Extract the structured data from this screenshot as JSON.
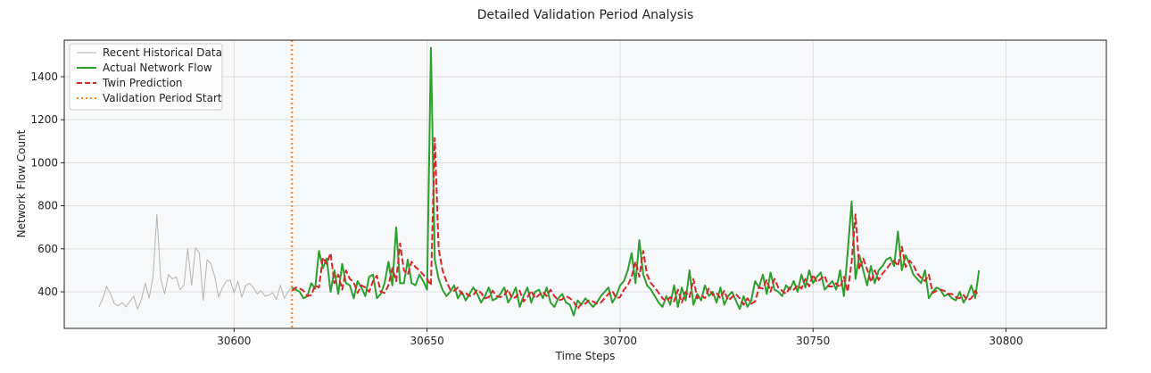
{
  "chart_data": {
    "type": "line",
    "title": "Detailed Validation Period Analysis",
    "xlabel": "Time Steps",
    "ylabel": "Network Flow Count",
    "xlim": [
      30556,
      30826
    ],
    "ylim": [
      230,
      1570
    ],
    "xticks": [
      30600,
      30650,
      30700,
      30750,
      30800
    ],
    "yticks": [
      400,
      600,
      800,
      1000,
      1200,
      1400
    ],
    "grid": true,
    "legend_position": "top-left",
    "validation_start": 30615,
    "colors": {
      "historical": "#b3b3b3",
      "actual": "#2ca02c",
      "prediction": "#d62728",
      "validation": "#ff7f0e",
      "plot_bg": "#f7f8fa"
    },
    "series": [
      {
        "name": "Recent Historical Data",
        "x_start": 30565,
        "values": [
          330,
          370,
          425,
          390,
          345,
          335,
          350,
          330,
          355,
          380,
          320,
          365,
          440,
          370,
          470,
          760,
          460,
          390,
          480,
          460,
          470,
          410,
          430,
          600,
          430,
          605,
          580,
          360,
          550,
          530,
          470,
          375,
          420,
          450,
          455,
          395,
          450,
          375,
          430,
          440,
          420,
          390,
          405,
          380,
          385,
          395,
          365,
          430,
          370,
          400,
          420,
          395
        ]
      },
      {
        "name": "Actual Network Flow",
        "x_start": 30615,
        "values": [
          420,
          410,
          400,
          370,
          380,
          440,
          415,
          590,
          510,
          555,
          400,
          500,
          390,
          530,
          440,
          430,
          370,
          450,
          420,
          380,
          470,
          480,
          370,
          390,
          440,
          540,
          430,
          700,
          440,
          440,
          550,
          440,
          430,
          480,
          450,
          410,
          1535,
          550,
          460,
          410,
          380,
          400,
          430,
          370,
          400,
          360,
          390,
          420,
          390,
          350,
          380,
          420,
          360,
          370,
          390,
          420,
          350,
          380,
          420,
          330,
          380,
          420,
          350,
          400,
          410,
          370,
          420,
          350,
          330,
          370,
          390,
          350,
          340,
          290,
          360,
          340,
          370,
          350,
          330,
          350,
          380,
          400,
          420,
          350,
          380,
          430,
          450,
          500,
          580,
          440,
          640,
          480,
          430,
          410,
          380,
          350,
          330,
          380,
          340,
          430,
          330,
          420,
          360,
          500,
          340,
          390,
          360,
          430,
          380,
          400,
          350,
          420,
          340,
          380,
          400,
          360,
          320,
          380,
          330,
          360,
          450,
          420,
          480,
          390,
          490,
          410,
          400,
          380,
          430,
          410,
          450,
          400,
          480,
          420,
          500,
          440,
          470,
          490,
          410,
          430,
          450,
          410,
          500,
          380,
          590,
          820,
          460,
          570,
          500,
          430,
          520,
          440,
          500,
          520,
          550,
          560,
          520,
          680,
          500,
          570,
          530,
          480,
          460,
          440,
          500,
          370,
          400,
          420,
          410,
          380,
          390,
          370,
          360,
          400,
          350,
          380,
          430,
          370,
          500
        ]
      },
      {
        "name": "Twin Prediction",
        "x_start": 30615,
        "values": [
          405,
          420,
          415,
          405,
          380,
          385,
          430,
          420,
          560,
          530,
          580,
          440,
          480,
          410,
          500,
          460,
          445,
          395,
          430,
          420,
          400,
          450,
          475,
          400,
          395,
          430,
          510,
          450,
          625,
          500,
          480,
          540,
          515,
          500,
          480,
          460,
          430,
          1115,
          600,
          500,
          450,
          410,
          405,
          420,
          390,
          395,
          380,
          385,
          410,
          395,
          370,
          375,
          405,
          380,
          375,
          385,
          410,
          370,
          375,
          405,
          355,
          375,
          405,
          370,
          385,
          400,
          380,
          410,
          380,
          360,
          365,
          380,
          370,
          355,
          320,
          345,
          345,
          360,
          355,
          345,
          350,
          370,
          390,
          405,
          370,
          375,
          410,
          430,
          470,
          540,
          470,
          590,
          480,
          440,
          420,
          395,
          370,
          355,
          375,
          355,
          410,
          350,
          400,
          375,
          460,
          370,
          385,
          370,
          415,
          385,
          395,
          370,
          405,
          360,
          375,
          390,
          370,
          340,
          370,
          345,
          355,
          420,
          415,
          455,
          400,
          460,
          420,
          405,
          390,
          420,
          410,
          430,
          415,
          460,
          425,
          480,
          445,
          460,
          475,
          425,
          425,
          440,
          420,
          470,
          400,
          540,
          760,
          505,
          555,
          505,
          445,
          500,
          455,
          485,
          505,
          530,
          545,
          520,
          610,
          515,
          545,
          525,
          485,
          465,
          450,
          480,
          395,
          405,
          410,
          405,
          390,
          390,
          375,
          370,
          385,
          360,
          370,
          405,
          380
        ]
      },
      {
        "name": "Validation Period Start",
        "type": "vline",
        "x": 30615
      }
    ]
  }
}
